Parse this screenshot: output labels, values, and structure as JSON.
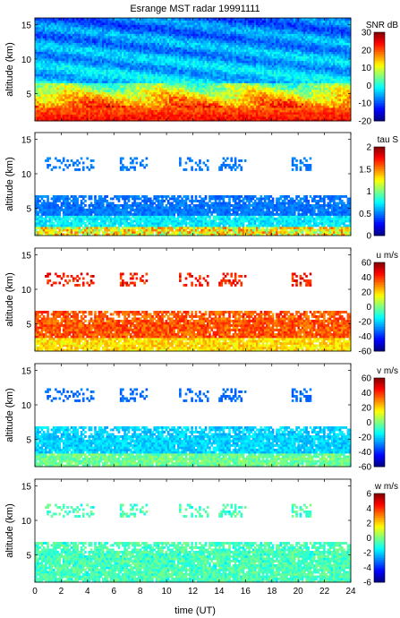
{
  "figure": {
    "title": "Esrange MST radar 19991111",
    "xlabel": "time (UT)",
    "x_ticks": [
      "0",
      "2",
      "4",
      "6",
      "8",
      "10",
      "12",
      "14",
      "16",
      "18",
      "20",
      "22",
      "24"
    ]
  },
  "chart_data": [
    {
      "type": "heatmap",
      "ylabel": "altitude (km)",
      "y_ticks": [
        "5",
        "10",
        "15"
      ],
      "xlim": [
        0,
        24
      ],
      "ylim": [
        1,
        16
      ],
      "colorbar": {
        "label": "SNR dB",
        "range": [
          -20,
          30
        ],
        "ticks": [
          "30",
          "20",
          "10",
          "0",
          "-10",
          "-20"
        ]
      },
      "field": "snr"
    },
    {
      "type": "heatmap",
      "ylabel": "altitude (km)",
      "y_ticks": [
        "5",
        "10",
        "15"
      ],
      "xlim": [
        0,
        24
      ],
      "ylim": [
        1,
        16
      ],
      "colorbar": {
        "label": "tau S",
        "range": [
          0,
          2
        ],
        "ticks": [
          "2",
          "1.5",
          "1",
          "0.5",
          "0"
        ]
      },
      "field": "tau"
    },
    {
      "type": "heatmap",
      "ylabel": "altitude (km)",
      "y_ticks": [
        "5",
        "10",
        "15"
      ],
      "xlim": [
        0,
        24
      ],
      "ylim": [
        1,
        16
      ],
      "colorbar": {
        "label": "u m/s",
        "range": [
          -60,
          60
        ],
        "ticks": [
          "60",
          "40",
          "20",
          "0",
          "-20",
          "-40",
          "-60"
        ]
      },
      "field": "u"
    },
    {
      "type": "heatmap",
      "ylabel": "altitude (km)",
      "y_ticks": [
        "5",
        "10",
        "15"
      ],
      "xlim": [
        0,
        24
      ],
      "ylim": [
        1,
        16
      ],
      "colorbar": {
        "label": "v m/s",
        "range": [
          -60,
          60
        ],
        "ticks": [
          "60",
          "40",
          "20",
          "0",
          "-20",
          "-40",
          "-60"
        ]
      },
      "field": "v"
    },
    {
      "type": "heatmap",
      "ylabel": "altitude (km)",
      "y_ticks": [
        "5",
        "10",
        "15"
      ],
      "xlim": [
        0,
        24
      ],
      "ylim": [
        1,
        16
      ],
      "colorbar": {
        "label": "w m/s",
        "range": [
          -6,
          6
        ],
        "ticks": [
          "6",
          "4",
          "2",
          "0",
          "-2",
          "-4",
          "-6"
        ]
      },
      "field": "w"
    }
  ]
}
